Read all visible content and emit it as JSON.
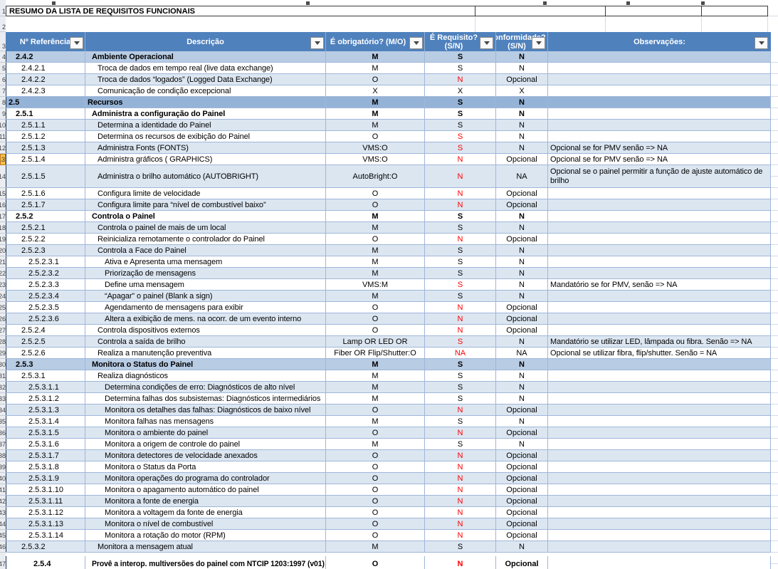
{
  "title": "RESUMO DA LISTA DE REQUISITOS FUNCIONAIS",
  "colors": {
    "hdrbg": "#4F81BD",
    "band": "#DCE6F1",
    "sec": "#B8CCE4",
    "sec2": "#95B3D7",
    "red": "#FF0000",
    "gridblue": "#9FB6D9",
    "hlfill": "#FBBF4D",
    "hlborder": "#C07C1A"
  },
  "columns": {
    "ref": "Nº Referência",
    "desc": "Descrição",
    "obrig": "É obrigatório? (M/O)",
    "req1": "É Requisito?",
    "req2": "(S/N)",
    "conf1": "Conformidade?",
    "conf2": "(S/N)",
    "obs": "Observações:"
  },
  "gutter_top": [
    "1",
    "2",
    "3"
  ],
  "table": {
    "rows": [
      {
        "n": "4",
        "ref": "2.4.2",
        "lvl": 3,
        "desc": "Ambiente Operacional",
        "ob": "M",
        "rq": "S",
        "rr": 0,
        "cf": "N",
        "obs": "",
        "b": 1,
        "bg": "s"
      },
      {
        "n": "5",
        "ref": "2.4.2.1",
        "lvl": 4,
        "desc": "Troca de dados em tempo real (live data exchange)",
        "ob": "M",
        "rq": "S",
        "rr": 0,
        "cf": "N",
        "obs": "",
        "b": 0,
        "bg": "w"
      },
      {
        "n": "6",
        "ref": "2.4.2.2",
        "lvl": 4,
        "desc": "Troca de dados “logados” (Logged Data Exchange)",
        "ob": "O",
        "rq": "N",
        "rr": 1,
        "cf": "Opcional",
        "obs": "",
        "b": 0,
        "bg": "b"
      },
      {
        "n": "7",
        "ref": "2.4.2.3",
        "lvl": 4,
        "desc": "Comunicação de condição excepcional",
        "ob": "X",
        "rq": "X",
        "rr": 0,
        "cf": "X",
        "obs": "",
        "b": 0,
        "bg": "w"
      },
      {
        "n": "8",
        "ref": "2.5",
        "lvl": 2,
        "desc": "Recursos",
        "ob": "M",
        "rq": "S",
        "rr": 0,
        "cf": "N",
        "obs": "",
        "b": 1,
        "bg": "d"
      },
      {
        "n": "9",
        "ref": "2.5.1",
        "lvl": 3,
        "desc": "Administra a configuração do Painel",
        "ob": "M",
        "rq": "S",
        "rr": 0,
        "cf": "N",
        "obs": "",
        "b": 1,
        "bg": "w"
      },
      {
        "n": "10",
        "ref": "2.5.1.1",
        "lvl": 4,
        "desc": "Determina a identidade do Painel",
        "ob": "M",
        "rq": "S",
        "rr": 0,
        "cf": "N",
        "obs": "",
        "b": 0,
        "bg": "b"
      },
      {
        "n": "11",
        "ref": "2.5.1.2",
        "lvl": 4,
        "desc": "Determina os recursos de exibição do Painel",
        "ob": "O",
        "rq": "S",
        "rr": 1,
        "cf": "N",
        "obs": "",
        "b": 0,
        "bg": "w"
      },
      {
        "n": "12",
        "ref": "2.5.1.3",
        "lvl": 4,
        "desc": "Administra Fonts (FONTS)",
        "ob": "VMS:O",
        "rq": "S",
        "rr": 1,
        "cf": "N",
        "obs": "Opcional se for PMV senão => NA",
        "b": 0,
        "bg": "b"
      },
      {
        "n": "13",
        "ref": "2.5.1.4",
        "lvl": 4,
        "desc": "Administra gráficos ( GRAPHICS)",
        "ob": "VMS:O",
        "rq": "N",
        "rr": 1,
        "cf": "Opcional",
        "obs": "Opcional se for PMV senão => NA",
        "b": 0,
        "bg": "w",
        "hl": 1
      },
      {
        "n": "14",
        "ref": "2.5.1.5",
        "lvl": 4,
        "desc": "Administra o brilho automático (AUTOBRIGHT)",
        "ob": "AutoBright:O",
        "rq": "N",
        "rr": 1,
        "cf": "NA",
        "obs": "Opcional se o painel permitir a função de ajuste automático de brilho",
        "b": 0,
        "bg": "b",
        "h": 32
      },
      {
        "n": "15",
        "ref": "2.5.1.6",
        "lvl": 4,
        "desc": "Configura limite de velocidade",
        "ob": "O",
        "rq": "N",
        "rr": 1,
        "cf": "Opcional",
        "obs": "",
        "b": 0,
        "bg": "w"
      },
      {
        "n": "16",
        "ref": "2.5.1.7",
        "lvl": 4,
        "desc": "Configura limite para “nível de combustível baixo”",
        "ob": "O",
        "rq": "N",
        "rr": 1,
        "cf": "Opcional",
        "obs": "",
        "b": 0,
        "bg": "b"
      },
      {
        "n": "17",
        "ref": "2.5.2",
        "lvl": 3,
        "desc": "Controla o Painel",
        "ob": "M",
        "rq": "S",
        "rr": 0,
        "cf": "N",
        "obs": "",
        "b": 1,
        "bg": "w"
      },
      {
        "n": "18",
        "ref": "2.5.2.1",
        "lvl": 4,
        "desc": "Controla o painel de mais de um local",
        "ob": "M",
        "rq": "S",
        "rr": 0,
        "cf": "N",
        "obs": "",
        "b": 0,
        "bg": "b"
      },
      {
        "n": "19",
        "ref": "2.5.2.2",
        "lvl": 4,
        "desc": "Reinicializa remotamente o controlador do Painel",
        "ob": "O",
        "rq": "N",
        "rr": 1,
        "cf": "Opcional",
        "obs": "",
        "b": 0,
        "bg": "w"
      },
      {
        "n": "20",
        "ref": "2.5.2.3",
        "lvl": 4,
        "desc": "Controla a Face do Painel",
        "ob": "M",
        "rq": "S",
        "rr": 0,
        "cf": "N",
        "obs": "",
        "b": 0,
        "bg": "b"
      },
      {
        "n": "21",
        "ref": "2.5.2.3.1",
        "lvl": 5,
        "desc": "Ativa e Apresenta uma mensagem",
        "ob": "M",
        "rq": "S",
        "rr": 0,
        "cf": "N",
        "obs": "",
        "b": 0,
        "bg": "w"
      },
      {
        "n": "22",
        "ref": "2.5.2.3.2",
        "lvl": 5,
        "desc": "Priorização de mensagens",
        "ob": "M",
        "rq": "S",
        "rr": 0,
        "cf": "N",
        "obs": "",
        "b": 0,
        "bg": "b"
      },
      {
        "n": "23",
        "ref": "2.5.2.3.3",
        "lvl": 5,
        "desc": "Define uma mensagem",
        "ob": "VMS:M",
        "rq": "S",
        "rr": 1,
        "cf": "N",
        "obs": "Mandatório se for PMV, senão => NA",
        "b": 0,
        "bg": "w"
      },
      {
        "n": "24",
        "ref": "2.5.2.3.4",
        "lvl": 5,
        "desc": "“Apagar” o painel (Blank a sign)",
        "ob": "M",
        "rq": "S",
        "rr": 0,
        "cf": "N",
        "obs": "",
        "b": 0,
        "bg": "b"
      },
      {
        "n": "25",
        "ref": "2.5.2.3.5",
        "lvl": 5,
        "desc": "Agendamento de mensagens para exibir",
        "ob": "O",
        "rq": "N",
        "rr": 1,
        "cf": "Opcional",
        "obs": "",
        "b": 0,
        "bg": "w"
      },
      {
        "n": "26",
        "ref": "2.5.2.3.6",
        "lvl": 5,
        "desc": "Altera a exibição de mens. na ocorr. de um evento interno",
        "ob": "O",
        "rq": "N",
        "rr": 1,
        "cf": "Opcional",
        "obs": "",
        "b": 0,
        "bg": "b"
      },
      {
        "n": "27",
        "ref": "2.5.2.4",
        "lvl": 4,
        "desc": "Controla dispositivos externos",
        "ob": "O",
        "rq": "N",
        "rr": 1,
        "cf": "Opcional",
        "obs": "",
        "b": 0,
        "bg": "w"
      },
      {
        "n": "28",
        "ref": "2.5.2.5",
        "lvl": 4,
        "desc": "Controla a saída de brilho",
        "ob": "Lamp OR LED OR",
        "rq": "S",
        "rr": 1,
        "cf": "N",
        "obs": "Mandatório se utilizar LED, lâmpada ou fibra. Senão => NA",
        "b": 0,
        "bg": "b"
      },
      {
        "n": "29",
        "ref": "2.5.2.6",
        "lvl": 4,
        "desc": "Realiza a manutenção preventiva",
        "ob": "Fiber OR Flip/Shutter:O",
        "rq": "NA",
        "rr": 1,
        "cf": "NA",
        "obs": "Opcional se utilizar fibra, flip/shutter. Senão = NA",
        "b": 0,
        "bg": "w"
      },
      {
        "n": "30",
        "ref": "2.5.3",
        "lvl": 3,
        "desc": "Monitora o Status do Painel",
        "ob": "M",
        "rq": "S",
        "rr": 0,
        "cf": "N",
        "obs": "",
        "b": 1,
        "bg": "s"
      },
      {
        "n": "31",
        "ref": "2.5.3.1",
        "lvl": 4,
        "desc": "Realiza diagnósticos",
        "ob": "M",
        "rq": "S",
        "rr": 0,
        "cf": "N",
        "obs": "",
        "b": 0,
        "bg": "w"
      },
      {
        "n": "32",
        "ref": "2.5.3.1.1",
        "lvl": 5,
        "desc": "Determina condições de erro: Diagnósticos de alto nível",
        "ob": "M",
        "rq": "S",
        "rr": 0,
        "cf": "N",
        "obs": "",
        "b": 0,
        "bg": "b"
      },
      {
        "n": "33",
        "ref": "2.5.3.1.2",
        "lvl": 5,
        "desc": "Determina falhas dos subsistemas: Diagnósticos intermediários",
        "ob": "M",
        "rq": "S",
        "rr": 0,
        "cf": "N",
        "obs": "",
        "b": 0,
        "bg": "w"
      },
      {
        "n": "34",
        "ref": "2.5.3.1.3",
        "lvl": 5,
        "desc": "Monitora os detalhes das falhas: Diagnósticos de baixo nível",
        "ob": "O",
        "rq": "N",
        "rr": 1,
        "cf": "Opcional",
        "obs": "",
        "b": 0,
        "bg": "b"
      },
      {
        "n": "35",
        "ref": "2.5.3.1.4",
        "lvl": 5,
        "desc": "Monitora falhas nas mensagens",
        "ob": "M",
        "rq": "S",
        "rr": 0,
        "cf": "N",
        "obs": "",
        "b": 0,
        "bg": "w"
      },
      {
        "n": "36",
        "ref": "2.5.3.1.5",
        "lvl": 5,
        "desc": "Monitora o ambiente do painel",
        "ob": "O",
        "rq": "N",
        "rr": 1,
        "cf": "Opcional",
        "obs": "",
        "b": 0,
        "bg": "b"
      },
      {
        "n": "37",
        "ref": "2.5.3.1.6",
        "lvl": 5,
        "desc": "Monitora a origem de controle do painel",
        "ob": "M",
        "rq": "S",
        "rr": 0,
        "cf": "N",
        "obs": "",
        "b": 0,
        "bg": "w"
      },
      {
        "n": "38",
        "ref": "2.5.3.1.7",
        "lvl": 5,
        "desc": "Monitora detectores de velocidade anexados",
        "ob": "O",
        "rq": "N",
        "rr": 1,
        "cf": "Opcional",
        "obs": "",
        "b": 0,
        "bg": "b"
      },
      {
        "n": "39",
        "ref": "2.5.3.1.8",
        "lvl": 5,
        "desc": "Monitora o Status da Porta",
        "ob": "O",
        "rq": "N",
        "rr": 1,
        "cf": "Opcional",
        "obs": "",
        "b": 0,
        "bg": "w"
      },
      {
        "n": "40",
        "ref": "2.5.3.1.9",
        "lvl": 5,
        "desc": "Monitora operações do programa do controlador",
        "ob": "O",
        "rq": "N",
        "rr": 1,
        "cf": "Opcional",
        "obs": "",
        "b": 0,
        "bg": "b"
      },
      {
        "n": "41",
        "ref": "2.5.3.1.10",
        "lvl": 5,
        "desc": "Monitora o apagamento automático do painel",
        "ob": "O",
        "rq": "N",
        "rr": 1,
        "cf": "Opcional",
        "obs": "",
        "b": 0,
        "bg": "w"
      },
      {
        "n": "42",
        "ref": "2.5.3.1.11",
        "lvl": 5,
        "desc": "Monitora a fonte de energia",
        "ob": "O",
        "rq": "N",
        "rr": 1,
        "cf": "Opcional",
        "obs": "",
        "b": 0,
        "bg": "b"
      },
      {
        "n": "43",
        "ref": "2.5.3.1.12",
        "lvl": 5,
        "desc": "Monitora a voltagem da fonte de energia",
        "ob": "O",
        "rq": "N",
        "rr": 1,
        "cf": "Opcional",
        "obs": "",
        "b": 0,
        "bg": "w"
      },
      {
        "n": "44",
        "ref": "2.5.3.1.13",
        "lvl": 5,
        "desc": "Monitora o nível de combustível",
        "ob": "O",
        "rq": "N",
        "rr": 1,
        "cf": "Opcional",
        "obs": "",
        "b": 0,
        "bg": "b"
      },
      {
        "n": "45",
        "ref": "2.5.3.1.14",
        "lvl": 5,
        "desc": "Monitora a rotação do motor (RPM)",
        "ob": "O",
        "rq": "N",
        "rr": 1,
        "cf": "Opcional",
        "obs": "",
        "b": 0,
        "bg": "w"
      },
      {
        "n": "46",
        "ref": "2.5.3.2",
        "lvl": 4,
        "desc": "Monitora a mensagem atual",
        "ob": "M",
        "rq": "S",
        "rr": 0,
        "cf": "N",
        "obs": "",
        "b": 0,
        "bg": "b"
      },
      {
        "n": "47",
        "ref": "2.5.4",
        "lvl": 3,
        "ri": 38,
        "desc": "Provê a interop. multiversões do painel com NTCIP 1203:1997 (v01)",
        "ob": "O",
        "rq": "N",
        "rr": 1,
        "cf": "Opcional",
        "obs": "",
        "b": 1,
        "bg": "w",
        "h": 23,
        "gap": 5
      }
    ]
  }
}
